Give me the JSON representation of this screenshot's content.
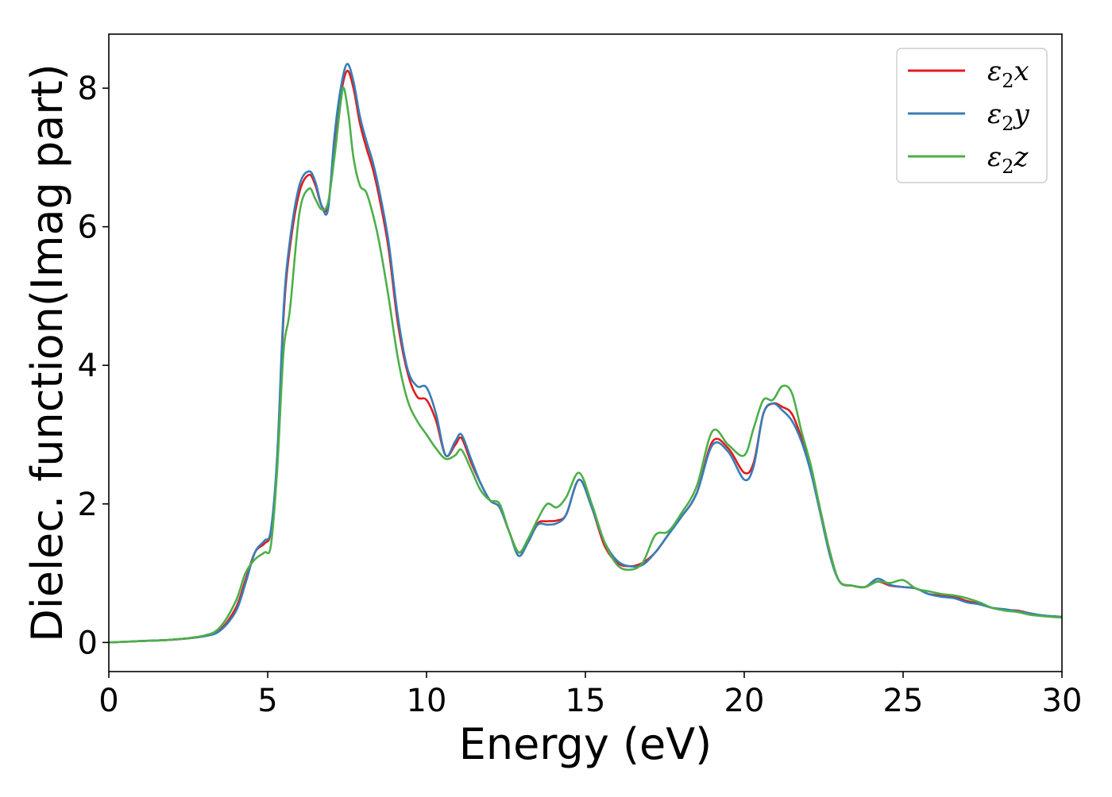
{
  "chart_data": {
    "type": "line",
    "title": "",
    "xlabel": "Energy (eV)",
    "ylabel": "Dielec. function(Imag part)",
    "xlim": [
      0,
      30
    ],
    "ylim": [
      -0.42,
      8.78
    ],
    "xticks": [
      0,
      5,
      10,
      15,
      20,
      25,
      30
    ],
    "xtick_labels": [
      "0",
      "5",
      "10",
      "15",
      "20",
      "25",
      "30"
    ],
    "yticks": [
      0,
      2,
      4,
      6,
      8
    ],
    "ytick_labels": [
      "0",
      "2",
      "4",
      "6",
      "8"
    ],
    "grid": false,
    "legend_position": "top-right",
    "series": [
      {
        "name": "ε₂x",
        "legend_symbol": "ε",
        "legend_sub": "2",
        "legend_axis": "x",
        "color": "#e41a1c",
        "x": [
          0,
          1,
          2,
          3,
          3.5,
          4,
          4.3,
          4.6,
          4.9,
          5.1,
          5.3,
          5.5,
          5.7,
          6.0,
          6.3,
          6.5,
          6.7,
          6.9,
          7.1,
          7.3,
          7.5,
          7.7,
          7.9,
          8.1,
          8.3,
          8.5,
          8.8,
          9.1,
          9.4,
          9.7,
          10.0,
          10.3,
          10.6,
          10.9,
          11.1,
          11.4,
          11.7,
          12.0,
          12.3,
          12.6,
          12.9,
          13.2,
          13.5,
          13.8,
          14.1,
          14.4,
          14.8,
          15.2,
          15.6,
          16.0,
          16.4,
          16.8,
          17.2,
          17.6,
          18.0,
          18.5,
          19.0,
          19.5,
          20.0,
          20.3,
          20.6,
          20.9,
          21.2,
          21.5,
          21.8,
          22.1,
          22.4,
          22.7,
          23.0,
          23.4,
          23.8,
          24.2,
          24.6,
          25.0,
          25.4,
          25.8,
          26.2,
          26.6,
          27.0,
          27.4,
          27.8,
          28.2,
          28.6,
          29.0,
          29.4,
          30.0
        ],
        "y": [
          0.0,
          0.02,
          0.04,
          0.09,
          0.18,
          0.5,
          0.9,
          1.3,
          1.43,
          1.6,
          2.6,
          4.7,
          5.7,
          6.5,
          6.75,
          6.6,
          6.3,
          6.3,
          7.2,
          7.9,
          8.25,
          8.0,
          7.5,
          7.15,
          6.85,
          6.45,
          5.7,
          4.6,
          3.9,
          3.55,
          3.5,
          3.2,
          2.7,
          2.85,
          2.95,
          2.6,
          2.3,
          2.05,
          1.95,
          1.6,
          1.3,
          1.45,
          1.72,
          1.75,
          1.76,
          1.85,
          2.35,
          1.95,
          1.4,
          1.15,
          1.1,
          1.15,
          1.3,
          1.55,
          1.8,
          2.15,
          2.9,
          2.8,
          2.45,
          2.6,
          3.3,
          3.45,
          3.4,
          3.3,
          2.95,
          2.5,
          1.9,
          1.3,
          0.88,
          0.82,
          0.8,
          0.88,
          0.82,
          0.8,
          0.78,
          0.7,
          0.68,
          0.66,
          0.6,
          0.56,
          0.5,
          0.47,
          0.46,
          0.42,
          0.39,
          0.37
        ]
      },
      {
        "name": "ε₂y",
        "legend_symbol": "ε",
        "legend_sub": "2",
        "legend_axis": "y",
        "color": "#377eb8",
        "x": [
          0,
          1,
          2,
          3,
          3.5,
          4,
          4.3,
          4.6,
          4.9,
          5.1,
          5.3,
          5.5,
          5.7,
          6.0,
          6.3,
          6.5,
          6.7,
          6.9,
          7.1,
          7.3,
          7.5,
          7.7,
          7.9,
          8.1,
          8.3,
          8.5,
          8.8,
          9.1,
          9.4,
          9.7,
          10.0,
          10.3,
          10.6,
          10.9,
          11.1,
          11.4,
          11.7,
          12.0,
          12.3,
          12.6,
          12.9,
          13.2,
          13.5,
          13.8,
          14.1,
          14.4,
          14.8,
          15.2,
          15.6,
          16.0,
          16.4,
          16.8,
          17.2,
          17.6,
          18.0,
          18.5,
          19.0,
          19.5,
          20.0,
          20.3,
          20.6,
          20.9,
          21.2,
          21.5,
          21.8,
          22.1,
          22.4,
          22.7,
          23.0,
          23.4,
          23.8,
          24.2,
          24.6,
          25.0,
          25.4,
          25.8,
          26.2,
          26.6,
          27.0,
          27.4,
          27.8,
          28.2,
          28.6,
          29.0,
          29.4,
          30.0
        ],
        "y": [
          0.0,
          0.02,
          0.04,
          0.09,
          0.17,
          0.45,
          0.85,
          1.3,
          1.47,
          1.62,
          2.7,
          4.8,
          5.8,
          6.6,
          6.8,
          6.65,
          6.3,
          6.25,
          7.3,
          8.0,
          8.35,
          8.1,
          7.6,
          7.25,
          6.95,
          6.55,
          5.8,
          4.7,
          3.95,
          3.7,
          3.68,
          3.3,
          2.7,
          2.9,
          3.0,
          2.65,
          2.3,
          2.05,
          1.95,
          1.6,
          1.25,
          1.45,
          1.7,
          1.7,
          1.72,
          1.85,
          2.35,
          1.95,
          1.45,
          1.18,
          1.1,
          1.12,
          1.3,
          1.55,
          1.8,
          2.15,
          2.85,
          2.75,
          2.35,
          2.55,
          3.3,
          3.45,
          3.35,
          3.2,
          2.9,
          2.45,
          1.85,
          1.25,
          0.88,
          0.82,
          0.8,
          0.92,
          0.83,
          0.8,
          0.78,
          0.7,
          0.66,
          0.64,
          0.58,
          0.55,
          0.5,
          0.48,
          0.45,
          0.42,
          0.39,
          0.37
        ]
      },
      {
        "name": "ε₂z",
        "legend_symbol": "ε",
        "legend_sub": "2",
        "legend_axis": "z",
        "color": "#4daf4a",
        "x": [
          0,
          1,
          2,
          3,
          3.5,
          4,
          4.3,
          4.6,
          4.9,
          5.1,
          5.3,
          5.5,
          5.7,
          6.0,
          6.3,
          6.5,
          6.7,
          6.9,
          7.1,
          7.3,
          7.4,
          7.55,
          7.7,
          7.9,
          8.1,
          8.3,
          8.5,
          8.8,
          9.1,
          9.4,
          9.7,
          10.0,
          10.3,
          10.6,
          10.9,
          11.1,
          11.4,
          11.7,
          12.0,
          12.3,
          12.6,
          12.9,
          13.2,
          13.5,
          13.8,
          14.1,
          14.4,
          14.8,
          15.2,
          15.6,
          16.0,
          16.4,
          16.8,
          17.2,
          17.6,
          18.0,
          18.5,
          19.0,
          19.5,
          20.0,
          20.3,
          20.6,
          20.9,
          21.2,
          21.5,
          21.8,
          22.1,
          22.4,
          22.7,
          23.0,
          23.4,
          23.8,
          24.2,
          24.6,
          25.0,
          25.4,
          25.8,
          26.2,
          26.6,
          27.0,
          27.4,
          27.8,
          28.2,
          28.6,
          29.0,
          29.4,
          30.0
        ],
        "y": [
          0.0,
          0.02,
          0.04,
          0.1,
          0.22,
          0.6,
          1.0,
          1.2,
          1.3,
          1.4,
          2.5,
          4.2,
          4.8,
          6.2,
          6.55,
          6.4,
          6.25,
          6.35,
          7.0,
          7.8,
          8.0,
          7.6,
          7.0,
          6.6,
          6.5,
          6.2,
          5.8,
          5.0,
          4.1,
          3.5,
          3.2,
          3.0,
          2.8,
          2.65,
          2.7,
          2.78,
          2.5,
          2.2,
          2.05,
          2.0,
          1.6,
          1.3,
          1.5,
          1.78,
          2.0,
          1.95,
          2.1,
          2.45,
          2.0,
          1.45,
          1.12,
          1.05,
          1.15,
          1.55,
          1.6,
          1.85,
          2.25,
          3.05,
          2.85,
          2.7,
          3.1,
          3.5,
          3.5,
          3.7,
          3.6,
          3.05,
          2.55,
          1.9,
          1.3,
          0.88,
          0.82,
          0.8,
          0.88,
          0.86,
          0.9,
          0.78,
          0.74,
          0.7,
          0.68,
          0.64,
          0.58,
          0.5,
          0.46,
          0.44,
          0.4,
          0.38,
          0.36
        ]
      }
    ]
  }
}
